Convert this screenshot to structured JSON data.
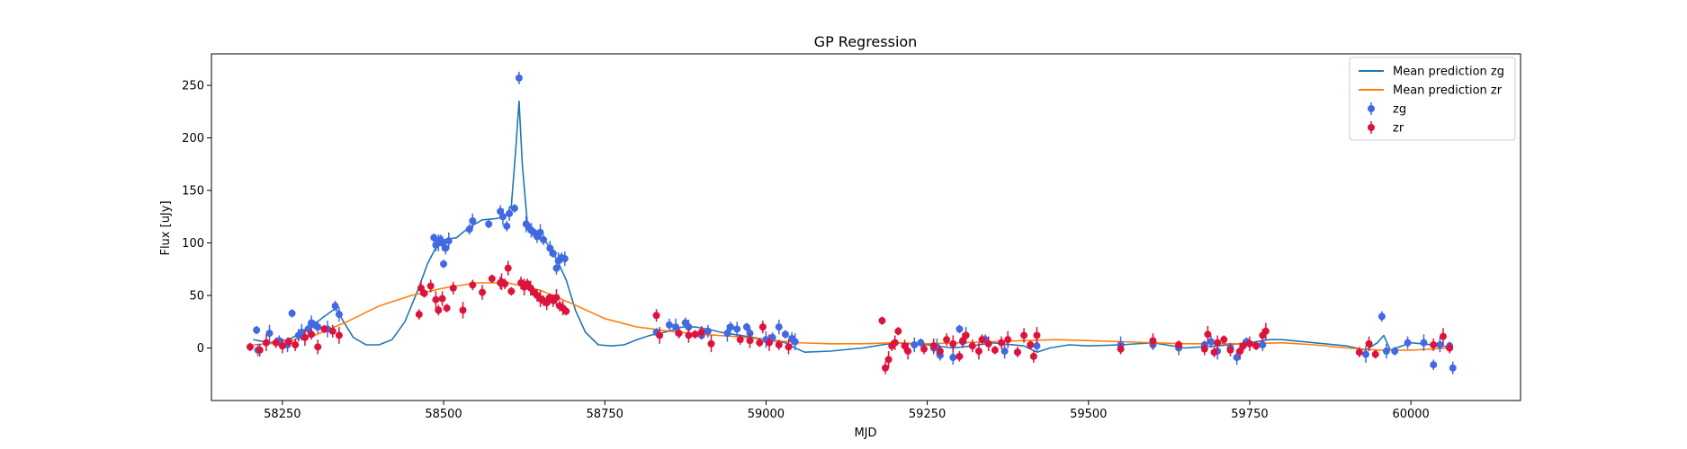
{
  "chart_data": {
    "type": "scatter",
    "title": "GP Regression",
    "xlabel": "MJD",
    "ylabel": "Flux [uJy]",
    "xlim": [
      58140,
      60170
    ],
    "ylim": [
      -50,
      280
    ],
    "xticks": [
      58250,
      58500,
      58750,
      59000,
      59250,
      59500,
      59750,
      60000
    ],
    "yticks": [
      0,
      50,
      100,
      150,
      200,
      250
    ],
    "grid": false,
    "legend_position": "top-right",
    "legend": [
      {
        "label": "Mean prediction zg",
        "kind": "line",
        "color": "#1f77b4"
      },
      {
        "label": "Mean prediction zr",
        "kind": "line",
        "color": "#ff7f0e"
      },
      {
        "label": "zg",
        "kind": "marker",
        "color": "#4169e1"
      },
      {
        "label": "zr",
        "kind": "marker",
        "color": "#dc143c"
      }
    ],
    "lines": [
      {
        "name": "Mean prediction zg",
        "color": "#1f77b4",
        "x": [
          58205,
          58230,
          58260,
          58290,
          58315,
          58333,
          58345,
          58360,
          58380,
          58400,
          58420,
          58440,
          58460,
          58475,
          58490,
          58500,
          58520,
          58540,
          58560,
          58580,
          58595,
          58605,
          58612,
          58617,
          58622,
          58630,
          58645,
          58660,
          58675,
          58690,
          58705,
          58720,
          58740,
          58760,
          58780,
          58800,
          58820,
          58835,
          58850,
          58870,
          58890,
          58910,
          58930,
          58950,
          58980,
          59000,
          59030,
          59045,
          59060,
          59100,
          59150,
          59200,
          59250,
          59290,
          59320,
          59350,
          59400,
          59420,
          59440,
          59470,
          59500,
          59550,
          59600,
          59650,
          59700,
          59750,
          59780,
          59800,
          59850,
          59900,
          59930,
          59948,
          59958,
          59968,
          60000,
          60050,
          60062
        ],
        "y": [
          8,
          5,
          8,
          18,
          30,
          38,
          25,
          10,
          3,
          3,
          8,
          25,
          55,
          80,
          98,
          103,
          105,
          115,
          122,
          123,
          125,
          135,
          190,
          235,
          175,
          118,
          110,
          100,
          85,
          65,
          35,
          15,
          3,
          2,
          3,
          8,
          12,
          14,
          16,
          20,
          20,
          18,
          15,
          13,
          10,
          8,
          5,
          0,
          -4,
          -3,
          0,
          5,
          3,
          0,
          2,
          5,
          2,
          -4,
          0,
          3,
          2,
          3,
          5,
          0,
          2,
          5,
          8,
          8,
          5,
          2,
          -2,
          5,
          12,
          -2,
          5,
          2,
          0
        ]
      },
      {
        "name": "Mean prediction zr",
        "color": "#ff7f0e",
        "x": [
          58205,
          58250,
          58300,
          58350,
          58400,
          58450,
          58500,
          58550,
          58600,
          58650,
          58700,
          58750,
          58800,
          58850,
          58900,
          58950,
          59000,
          59050,
          59100,
          59150,
          59200,
          59250,
          59300,
          59350,
          59400,
          59450,
          59500,
          59550,
          59600,
          59650,
          59700,
          59750,
          59800,
          59850,
          59900,
          59950,
          60000,
          60062
        ],
        "y": [
          3,
          5,
          12,
          25,
          40,
          50,
          57,
          62,
          62,
          55,
          42,
          28,
          20,
          16,
          13,
          11,
          8,
          5,
          4,
          4,
          5,
          4,
          5,
          6,
          7,
          8,
          7,
          6,
          5,
          4,
          4,
          4,
          5,
          3,
          0,
          -2,
          -2,
          0
        ]
      }
    ],
    "series": [
      {
        "name": "zg",
        "color": "#4169e1",
        "x": [
          58210,
          58212,
          58230,
          58245,
          58258,
          58265,
          58275,
          58280,
          58290,
          58295,
          58300,
          58305,
          58320,
          58332,
          58338,
          58485,
          58488,
          58492,
          58495,
          58498,
          58500,
          58503,
          58508,
          58540,
          58545,
          58570,
          58588,
          58592,
          58598,
          58602,
          58610,
          58617,
          58628,
          58632,
          58636,
          58640,
          58645,
          58650,
          58655,
          58665,
          58670,
          58675,
          58678,
          58683,
          58688,
          58830,
          58850,
          58860,
          58875,
          58880,
          58900,
          58910,
          58940,
          58945,
          58955,
          58970,
          58975,
          59000,
          59010,
          59020,
          59030,
          59040,
          59045,
          59200,
          59230,
          59240,
          59260,
          59265,
          59270,
          59290,
          59300,
          59305,
          59310,
          59340,
          59370,
          59390,
          59420,
          59550,
          59600,
          59640,
          59680,
          59690,
          59700,
          59720,
          59730,
          59745,
          59770,
          59930,
          59955,
          59962,
          59975,
          59995,
          60020,
          60035,
          60045,
          60060,
          60065
        ],
        "y": [
          17,
          -2,
          14,
          7,
          3,
          33,
          12,
          15,
          18,
          24,
          22,
          20,
          18,
          40,
          32,
          105,
          98,
          100,
          103,
          100,
          80,
          95,
          102,
          113,
          121,
          118,
          130,
          125,
          116,
          128,
          133,
          257,
          118,
          115,
          112,
          110,
          106,
          110,
          103,
          95,
          90,
          76,
          83,
          86,
          85,
          15,
          22,
          20,
          24,
          20,
          12,
          16,
          14,
          20,
          18,
          20,
          14,
          8,
          10,
          20,
          13,
          9,
          6,
          5,
          3,
          5,
          0,
          1,
          -7,
          -9,
          18,
          6,
          12,
          8,
          -3,
          -4,
          2,
          3,
          3,
          0,
          3,
          6,
          -3,
          0,
          -9,
          6,
          3,
          -6,
          30,
          -3,
          -3,
          5,
          5,
          -16,
          3,
          2,
          -19
        ]
      },
      {
        "name": "zr",
        "color": "#dc143c",
        "x": [
          58200,
          58215,
          58225,
          58240,
          58250,
          58260,
          58270,
          58285,
          58295,
          58305,
          58315,
          58328,
          58338,
          58462,
          58465,
          58470,
          58480,
          58488,
          58492,
          58498,
          58505,
          58515,
          58530,
          58545,
          58560,
          58575,
          58588,
          58590,
          58595,
          58600,
          58605,
          58620,
          58625,
          58630,
          58635,
          58640,
          58645,
          58650,
          58655,
          58660,
          58665,
          58670,
          58675,
          58680,
          58685,
          58690,
          58830,
          58835,
          58865,
          58880,
          58890,
          58900,
          58915,
          58960,
          58975,
          58990,
          58995,
          59005,
          59020,
          59035,
          59180,
          59185,
          59190,
          59195,
          59200,
          59205,
          59215,
          59220,
          59245,
          59260,
          59270,
          59280,
          59290,
          59300,
          59305,
          59310,
          59320,
          59330,
          59335,
          59345,
          59355,
          59365,
          59375,
          59390,
          59400,
          59410,
          59415,
          59420,
          59550,
          59600,
          59640,
          59680,
          59685,
          59695,
          59700,
          59710,
          59720,
          59735,
          59740,
          59750,
          59760,
          59770,
          59775,
          59920,
          59935,
          59945,
          60035,
          60050,
          60060
        ],
        "y": [
          1,
          -2,
          5,
          5,
          2,
          6,
          3,
          10,
          13,
          1,
          18,
          16,
          12,
          32,
          57,
          52,
          59,
          46,
          36,
          47,
          38,
          57,
          36,
          60,
          53,
          66,
          62,
          63,
          61,
          76,
          54,
          62,
          58,
          61,
          57,
          53,
          50,
          47,
          45,
          43,
          48,
          45,
          48,
          40,
          38,
          35,
          31,
          12,
          14,
          12,
          13,
          15,
          4,
          8,
          7,
          5,
          20,
          5,
          3,
          1,
          26,
          -19,
          -11,
          2,
          5,
          16,
          2,
          -3,
          -1,
          2,
          -3,
          8,
          4,
          -8,
          7,
          12,
          2,
          -3,
          8,
          4,
          -2,
          5,
          8,
          -4,
          12,
          3,
          -8,
          12,
          -1,
          7,
          3,
          -1,
          13,
          -4,
          5,
          8,
          -2,
          -3,
          2,
          4,
          2,
          12,
          16,
          -4,
          4,
          -6,
          3,
          11,
          0
        ]
      }
    ]
  }
}
